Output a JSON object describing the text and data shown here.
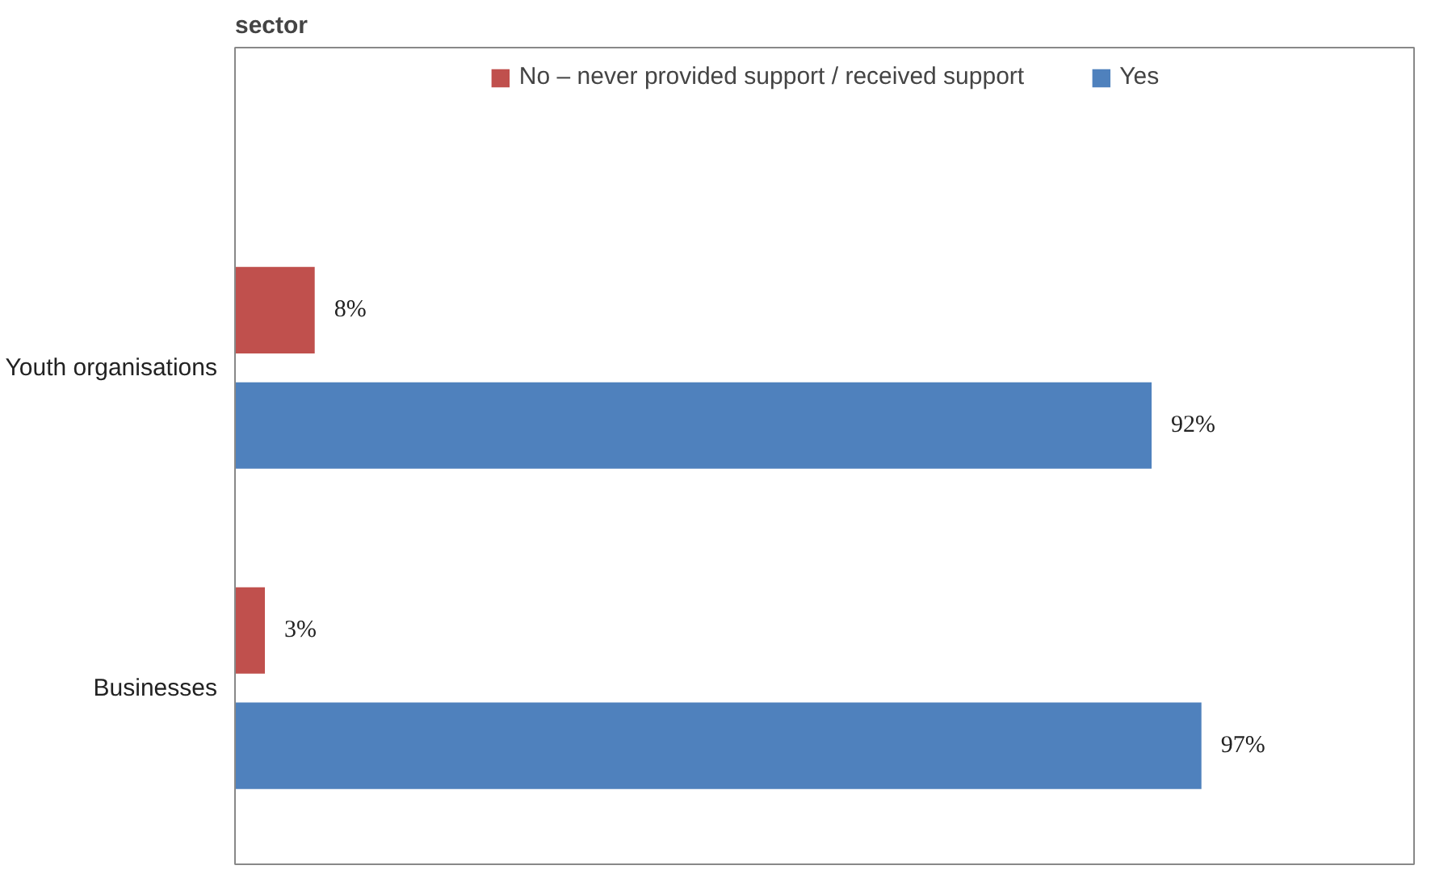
{
  "chart_data": {
    "type": "bar",
    "orientation": "horizontal",
    "title": "sector",
    "categories": [
      "Youth organisations",
      "Businesses"
    ],
    "series": [
      {
        "name": "No – never provided support / received support",
        "color": "#c0504d",
        "values": [
          8,
          3
        ],
        "value_labels": [
          "8%",
          "3%"
        ]
      },
      {
        "name": "Yes",
        "color": "#4f81bd",
        "values": [
          92,
          97
        ],
        "value_labels": [
          "92%",
          "97%"
        ]
      }
    ],
    "legend": "top"
  }
}
